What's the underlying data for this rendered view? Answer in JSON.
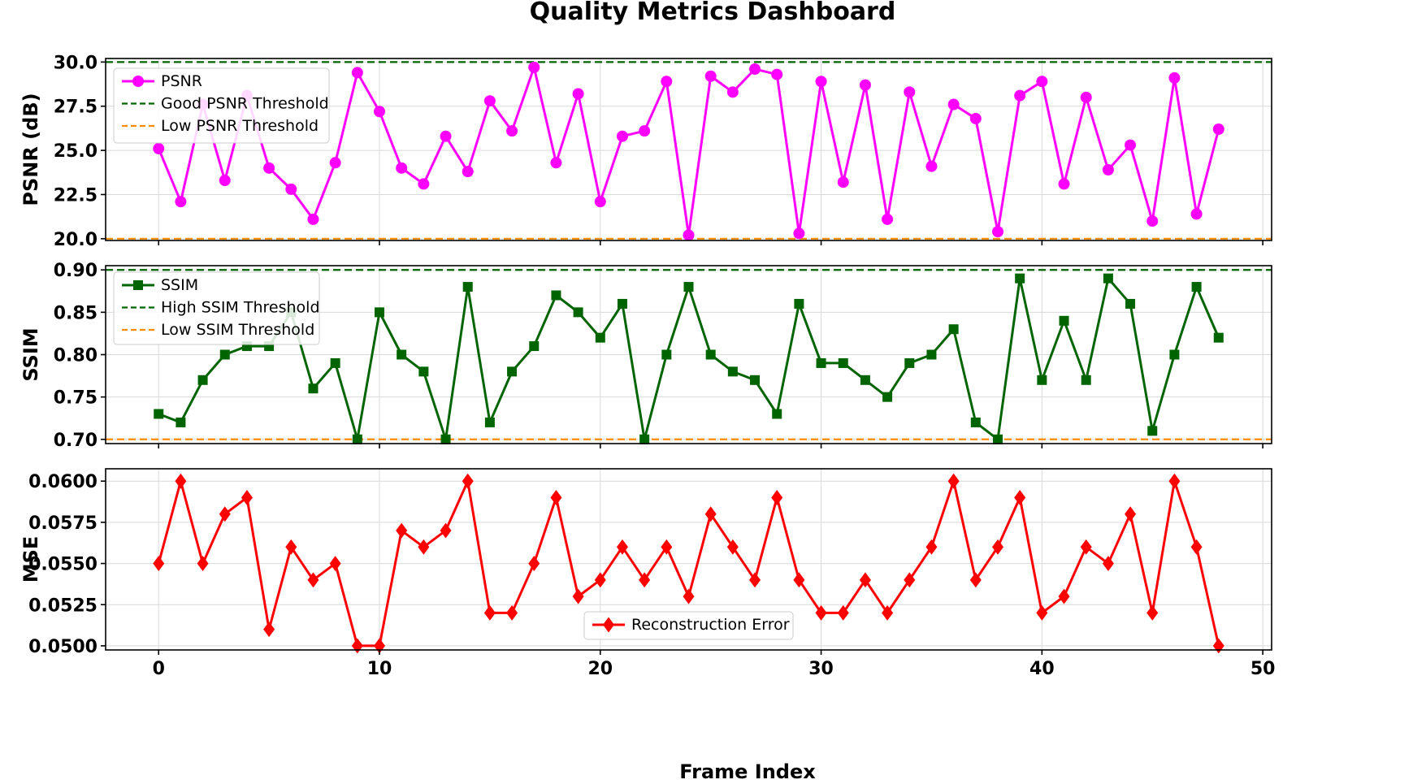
{
  "title": "Quality Metrics Dashboard",
  "xlabel": "Frame Index",
  "colors": {
    "psnr": "#ff00ff",
    "ssim": "#006400",
    "mse": "#ff0000",
    "good_threshold": "#006400",
    "low_threshold": "#ff8c00",
    "grid": "#d9d9d9"
  },
  "chart_data": [
    {
      "type": "line",
      "id": "psnr",
      "ylabel": "PSNR (dB)",
      "xlim": [
        -2.4,
        50.4
      ],
      "ylim": [
        19.9,
        30.2
      ],
      "xticks": [
        "0",
        "10",
        "20",
        "30",
        "40",
        "50"
      ],
      "yticks": [
        "20.0",
        "22.5",
        "25.0",
        "27.5",
        "30.0"
      ],
      "ytick_values": [
        20.0,
        22.5,
        25.0,
        27.5,
        30.0
      ],
      "grid": true,
      "legend_position": "upper-left",
      "series": [
        {
          "name": "PSNR",
          "marker": "circle",
          "x": [
            0,
            1,
            2,
            3,
            4,
            5,
            6,
            7,
            8,
            9,
            10,
            11,
            12,
            13,
            14,
            15,
            16,
            17,
            18,
            19,
            20,
            21,
            22,
            23,
            24,
            25,
            26,
            27,
            28,
            29,
            30,
            31,
            32,
            33,
            34,
            35,
            36,
            37,
            38,
            39,
            40,
            41,
            42,
            43,
            44,
            45,
            46,
            47,
            48
          ],
          "values": [
            25.1,
            22.1,
            27.6,
            23.3,
            28.1,
            24.0,
            22.8,
            21.1,
            24.3,
            29.4,
            27.2,
            24.0,
            23.1,
            25.8,
            23.8,
            27.8,
            26.1,
            29.7,
            24.3,
            28.2,
            22.1,
            25.8,
            26.1,
            28.9,
            20.2,
            29.2,
            28.3,
            29.6,
            29.3,
            20.3,
            28.9,
            23.2,
            28.7,
            21.1,
            28.3,
            24.1,
            27.6,
            26.8,
            20.4,
            28.1,
            28.9,
            23.1,
            28.0,
            23.9,
            25.3,
            21.0,
            29.1,
            21.4,
            26.2
          ]
        }
      ],
      "thresholds": [
        {
          "name": "Good PSNR Threshold",
          "value": 30.0,
          "color_key": "good_threshold"
        },
        {
          "name": "Low PSNR Threshold",
          "value": 20.0,
          "color_key": "low_threshold"
        }
      ]
    },
    {
      "type": "line",
      "id": "ssim",
      "ylabel": "SSIM",
      "xlim": [
        -2.4,
        50.4
      ],
      "ylim": [
        0.695,
        0.905
      ],
      "xticks": [
        "0",
        "10",
        "20",
        "30",
        "40",
        "50"
      ],
      "yticks": [
        "0.70",
        "0.75",
        "0.80",
        "0.85",
        "0.90"
      ],
      "ytick_values": [
        0.7,
        0.75,
        0.8,
        0.85,
        0.9
      ],
      "grid": true,
      "legend_position": "upper-left",
      "series": [
        {
          "name": "SSIM",
          "marker": "square",
          "x": [
            0,
            1,
            2,
            3,
            4,
            5,
            6,
            7,
            8,
            9,
            10,
            11,
            12,
            13,
            14,
            15,
            16,
            17,
            18,
            19,
            20,
            21,
            22,
            23,
            24,
            25,
            26,
            27,
            28,
            29,
            30,
            31,
            32,
            33,
            34,
            35,
            36,
            37,
            38,
            39,
            40,
            41,
            42,
            43,
            44,
            45,
            46,
            47,
            48
          ],
          "values": [
            0.73,
            0.72,
            0.77,
            0.8,
            0.81,
            0.81,
            0.85,
            0.76,
            0.79,
            0.7,
            0.85,
            0.8,
            0.78,
            0.7,
            0.88,
            0.72,
            0.78,
            0.81,
            0.87,
            0.85,
            0.82,
            0.86,
            0.7,
            0.8,
            0.88,
            0.8,
            0.78,
            0.77,
            0.73,
            0.86,
            0.79,
            0.79,
            0.77,
            0.75,
            0.79,
            0.8,
            0.83,
            0.72,
            0.7,
            0.89,
            0.77,
            0.84,
            0.77,
            0.89,
            0.86,
            0.71,
            0.8,
            0.88,
            0.82
          ]
        }
      ],
      "thresholds": [
        {
          "name": "High SSIM Threshold",
          "value": 0.9,
          "color_key": "good_threshold"
        },
        {
          "name": "Low SSIM Threshold",
          "value": 0.7,
          "color_key": "low_threshold"
        }
      ]
    },
    {
      "type": "line",
      "id": "mse",
      "ylabel": "MSE",
      "xlim": [
        -2.4,
        50.4
      ],
      "ylim": [
        0.04975,
        0.06075
      ],
      "xticks": [
        "0",
        "10",
        "20",
        "30",
        "40",
        "50"
      ],
      "xtick_values": [
        0,
        10,
        20,
        30,
        40,
        50
      ],
      "yticks": [
        "0.0500",
        "0.0525",
        "0.0550",
        "0.0575",
        "0.0600"
      ],
      "ytick_values": [
        0.05,
        0.0525,
        0.055,
        0.0575,
        0.06
      ],
      "grid": true,
      "legend_position": "lower-center",
      "series": [
        {
          "name": "Reconstruction Error",
          "marker": "diamond",
          "x": [
            0,
            1,
            2,
            3,
            4,
            5,
            6,
            7,
            8,
            9,
            10,
            11,
            12,
            13,
            14,
            15,
            16,
            17,
            18,
            19,
            20,
            21,
            22,
            23,
            24,
            25,
            26,
            27,
            28,
            29,
            30,
            31,
            32,
            33,
            34,
            35,
            36,
            37,
            38,
            39,
            40,
            41,
            42,
            43,
            44,
            45,
            46,
            47,
            48
          ],
          "values": [
            0.055,
            0.06,
            0.055,
            0.058,
            0.059,
            0.051,
            0.056,
            0.054,
            0.055,
            0.05,
            0.05,
            0.057,
            0.056,
            0.057,
            0.06,
            0.052,
            0.052,
            0.055,
            0.059,
            0.053,
            0.054,
            0.056,
            0.054,
            0.056,
            0.053,
            0.058,
            0.056,
            0.054,
            0.059,
            0.054,
            0.052,
            0.052,
            0.054,
            0.052,
            0.054,
            0.056,
            0.06,
            0.054,
            0.056,
            0.059,
            0.052,
            0.053,
            0.056,
            0.055,
            0.058,
            0.052,
            0.06,
            0.056,
            0.05
          ]
        }
      ],
      "thresholds": []
    }
  ]
}
